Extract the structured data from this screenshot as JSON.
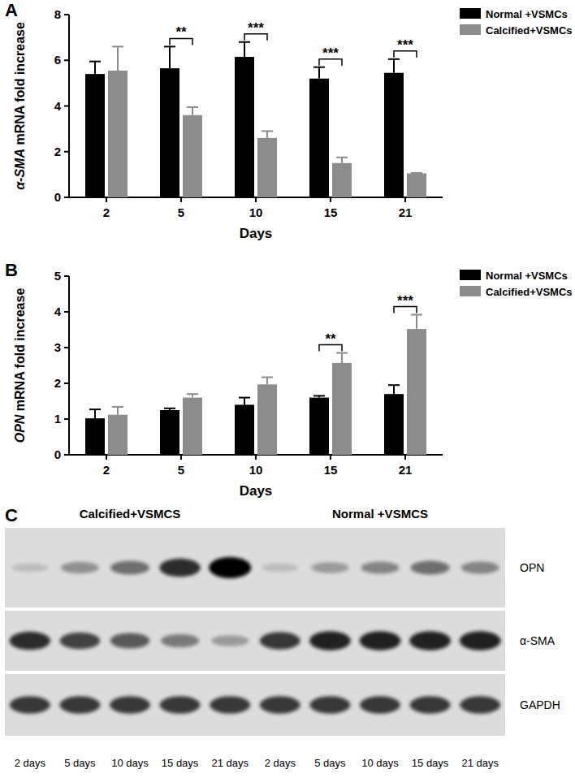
{
  "chart_data": [
    {
      "type": "bar",
      "panel": "A",
      "x_label": "Days",
      "y_label": "α-SMA mRNA fold increase",
      "categories": [
        "2",
        "5",
        "10",
        "15",
        "21"
      ],
      "series": [
        {
          "name": "Normal +VSMCs",
          "color": "#000000",
          "values": [
            5.4,
            5.65,
            6.15,
            5.2,
            5.45
          ],
          "errors": [
            0.55,
            0.95,
            0.65,
            0.5,
            0.6
          ]
        },
        {
          "name": "Calcified+VSMCs",
          "color": "#8c8c8c",
          "values": [
            5.55,
            3.6,
            2.6,
            1.5,
            1.05
          ],
          "errors": [
            1.05,
            0.35,
            0.3,
            0.25,
            0.02
          ]
        }
      ],
      "ylim": [
        0,
        8
      ],
      "yticks": [
        0,
        2,
        4,
        6,
        8
      ],
      "legend": "top-right",
      "annotations": [
        {
          "category": "5",
          "text": "**"
        },
        {
          "category": "10",
          "text": "***"
        },
        {
          "category": "15",
          "text": "***"
        },
        {
          "category": "21",
          "text": "***"
        }
      ]
    },
    {
      "type": "bar",
      "panel": "B",
      "x_label": "Days",
      "y_label": "OPN mRNA fold increase",
      "categories": [
        "2",
        "5",
        "10",
        "15",
        "21"
      ],
      "series": [
        {
          "name": "Normal +VSMCs",
          "color": "#000000",
          "values": [
            1.02,
            1.25,
            1.4,
            1.6,
            1.7
          ],
          "errors": [
            0.25,
            0.05,
            0.2,
            0.05,
            0.25
          ]
        },
        {
          "name": "Calcified+VSMCs",
          "color": "#8c8c8c",
          "values": [
            1.12,
            1.6,
            1.97,
            2.57,
            3.52
          ],
          "errors": [
            0.22,
            0.1,
            0.2,
            0.28,
            0.4
          ]
        }
      ],
      "ylim": [
        0,
        5
      ],
      "yticks": [
        0,
        1,
        2,
        3,
        4,
        5
      ],
      "legend": "top-right",
      "annotations": [
        {
          "category": "15",
          "text": "**"
        },
        {
          "category": "21",
          "text": "***"
        }
      ]
    }
  ],
  "blot": {
    "panel": "C",
    "groups": [
      {
        "label": "Calcified+VSMCS",
        "lane_labels": [
          "2 days",
          "5 days",
          "10 days",
          "15 days",
          "21 days"
        ]
      },
      {
        "label": "Normal +VSMCS",
        "lane_labels": [
          "2 days",
          "5 days",
          "10 days",
          "15 days",
          "21 days"
        ]
      }
    ],
    "rows": [
      {
        "name": "OPN",
        "intensity": [
          0.15,
          0.35,
          0.5,
          0.8,
          1.0,
          0.15,
          0.3,
          0.4,
          0.5,
          0.4
        ]
      },
      {
        "name": "α-SMA",
        "intensity": [
          0.8,
          0.7,
          0.6,
          0.45,
          0.3,
          0.75,
          0.85,
          0.85,
          0.85,
          0.85
        ]
      },
      {
        "name": "GAPDH",
        "intensity": [
          0.75,
          0.75,
          0.75,
          0.75,
          0.75,
          0.75,
          0.75,
          0.75,
          0.75,
          0.75
        ]
      }
    ]
  }
}
